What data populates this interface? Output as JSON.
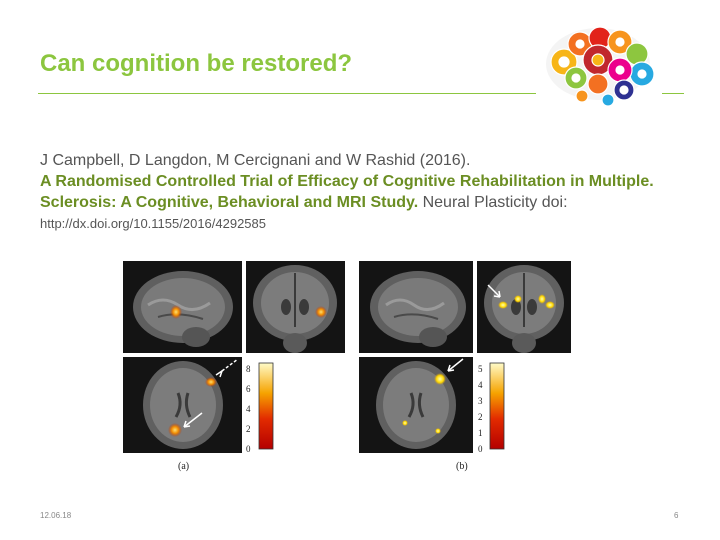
{
  "slide": {
    "title": "Can cognition be restored?",
    "date": "12.06.18",
    "page_number": "6"
  },
  "citation": {
    "authors": "J Campbell, D Langdon, M Cercignani  and W Rashid (2016).",
    "title": "A Randomised Controlled Trial of Efficacy of Cognitive Rehabilitation in Multiple. Sclerosis: A Cognitive, Behavioral and MRI Study.",
    "journal": " Neural Plasticity doi: ",
    "doi": "http://dx.doi.org/10.1155/2016/4292585"
  },
  "figure": {
    "panel_a_label": "(a)",
    "panel_b_label": "(b)",
    "scale_a_ticks": [
      "8",
      "6",
      "4",
      "2",
      "0"
    ],
    "scale_b_ticks": [
      "5",
      "4",
      "3",
      "2",
      "1",
      "0"
    ]
  },
  "colors": {
    "accent_green": "#8cc63f",
    "citation_green": "#6b8e23"
  },
  "icons": {
    "logo": "gear-brain-icon"
  }
}
